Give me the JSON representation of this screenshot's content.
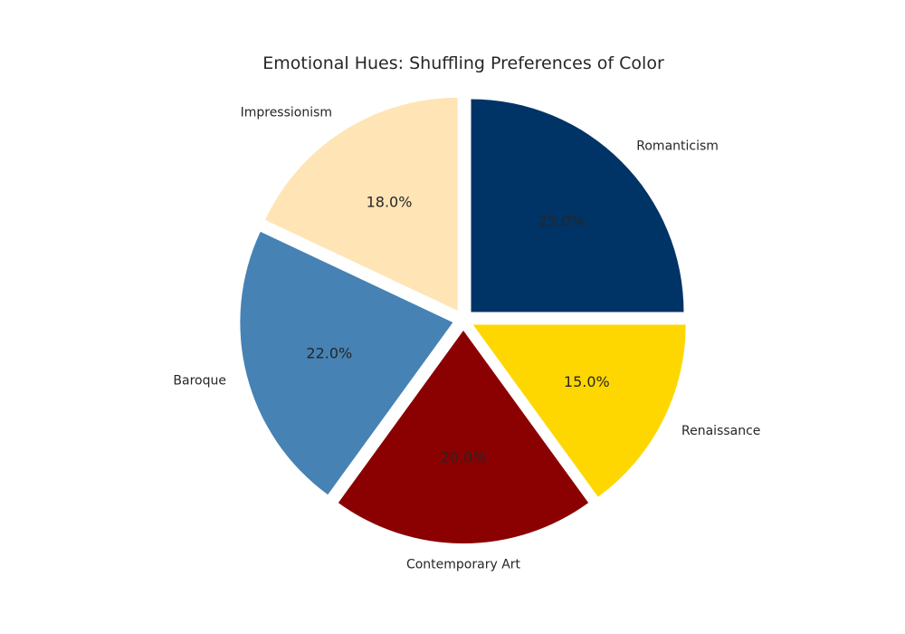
{
  "chart_data": {
    "type": "pie",
    "title": "Emotional Hues: Shuffling Preferences of Color",
    "slices": [
      {
        "label": "Renaissance",
        "value": 15.0,
        "pct_label": "15.0%",
        "color": "#FFD700"
      },
      {
        "label": "Romanticism",
        "value": 25.0,
        "pct_label": "25.0%",
        "color": "#003366"
      },
      {
        "label": "Impressionism",
        "value": 18.0,
        "pct_label": "18.0%",
        "color": "#FFE4B5"
      },
      {
        "label": "Baroque",
        "value": 22.0,
        "pct_label": "22.0%",
        "color": "#4682B4"
      },
      {
        "label": "Contemporary Art",
        "value": 20.0,
        "pct_label": "20.0%",
        "color": "#8B0000"
      }
    ],
    "legend": "none"
  }
}
